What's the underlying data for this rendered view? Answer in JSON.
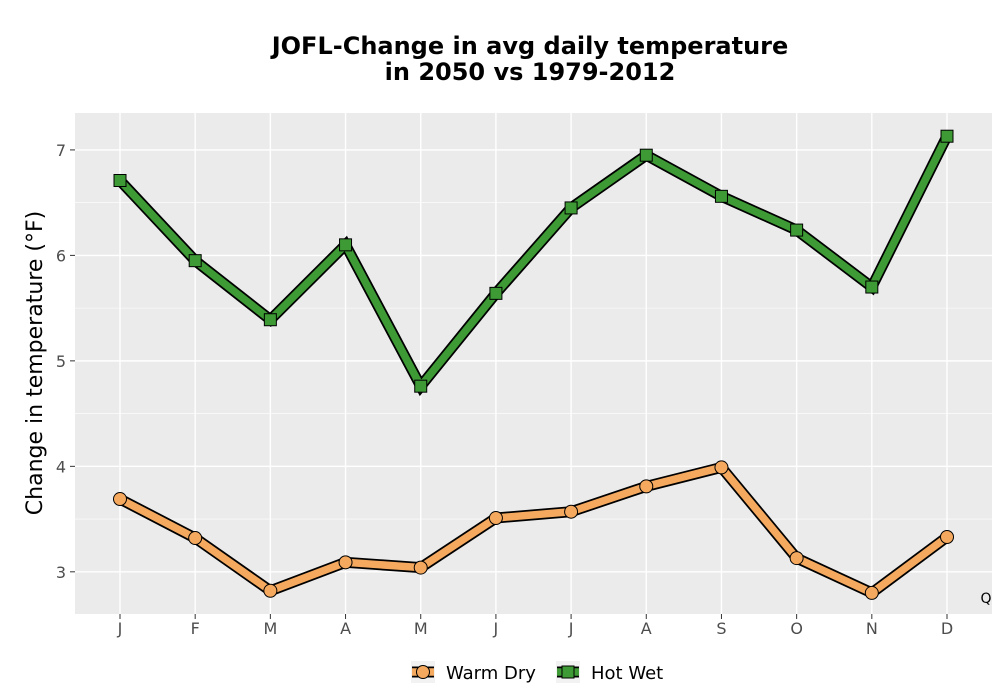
{
  "chart_data": {
    "type": "line",
    "title_line1": "JOFL-Change in avg daily temperature",
    "title_line2": "in 2050 vs 1979-2012",
    "xlabel": "",
    "ylabel": "Change in temperature (°F)",
    "categories": [
      "J",
      "F",
      "M",
      "A",
      "M",
      "J",
      "J",
      "A",
      "S",
      "O",
      "N",
      "D"
    ],
    "ylim": [
      2.6,
      7.35
    ],
    "yticks": [
      3,
      4,
      5,
      6,
      7
    ],
    "grid": true,
    "legend_position": "bottom",
    "corner_note": "Q",
    "series": [
      {
        "name": "Warm Dry",
        "marker": "circle",
        "color": "#f5a95f",
        "values": [
          3.69,
          3.32,
          2.82,
          3.09,
          3.04,
          3.51,
          3.57,
          3.81,
          3.99,
          3.13,
          2.8,
          3.33
        ]
      },
      {
        "name": "Hot Wet",
        "marker": "square",
        "color": "#3d9a35",
        "values": [
          6.71,
          5.95,
          5.39,
          6.1,
          4.76,
          5.64,
          6.45,
          6.95,
          6.56,
          6.24,
          5.7,
          7.13
        ]
      }
    ]
  }
}
